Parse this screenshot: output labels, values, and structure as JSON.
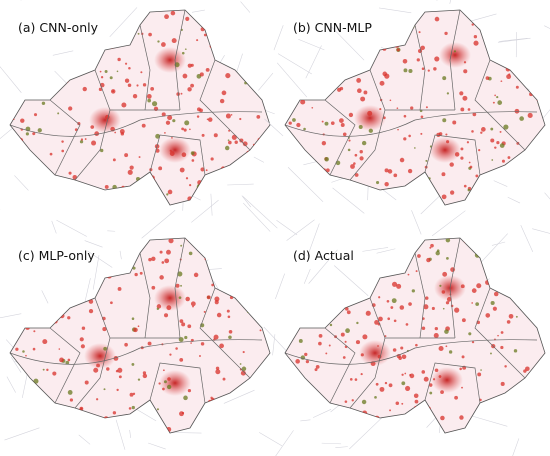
{
  "panels": [
    {
      "label": "(a) CNN-only"
    },
    {
      "label": "(b) CNN-MLP"
    },
    {
      "label": "(c) MLP-only"
    },
    {
      "label": "(d) Actual"
    }
  ]
}
